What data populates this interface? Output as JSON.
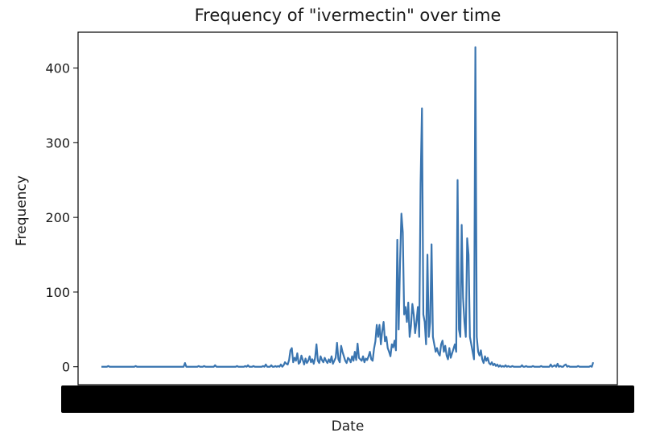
{
  "chart_data": {
    "type": "line",
    "title": "Frequency of \"ivermectin\" over time",
    "xlabel": "Date",
    "ylabel": "Frequency",
    "ylim": [
      -24,
      448
    ],
    "yticks": [
      0,
      100,
      200,
      300,
      400
    ],
    "grid": false,
    "legend": "none",
    "line_color": "#3a75b0",
    "x_tick_labels_note": "overlapping date tick labels rendered as an illegible black band",
    "series": [
      {
        "values": [
          0,
          0,
          0,
          0,
          0,
          1,
          0,
          0,
          0,
          0,
          0,
          0,
          0,
          0,
          0,
          0,
          0,
          0,
          0,
          0,
          0,
          0,
          0,
          0,
          0,
          1,
          0,
          0,
          0,
          0,
          0,
          0,
          0,
          0,
          0,
          0,
          0,
          0,
          0,
          0,
          0,
          0,
          0,
          0,
          0,
          0,
          0,
          0,
          0,
          0,
          0,
          0,
          0,
          0,
          0,
          0,
          0,
          0,
          0,
          0,
          0,
          5,
          0,
          0,
          0,
          0,
          0,
          0,
          0,
          0,
          0,
          1,
          0,
          0,
          0,
          1,
          0,
          0,
          0,
          0,
          0,
          0,
          0,
          2,
          0,
          0,
          0,
          0,
          0,
          0,
          0,
          0,
          0,
          0,
          0,
          0,
          0,
          0,
          0,
          1,
          0,
          0,
          0,
          0,
          0,
          1,
          0,
          2,
          0,
          0,
          0,
          1,
          0,
          0,
          0,
          0,
          0,
          0,
          1,
          0,
          3,
          0,
          0,
          0,
          2,
          0,
          0,
          1,
          0,
          1,
          0,
          3,
          0,
          2,
          6,
          4,
          3,
          9,
          22,
          25,
          6,
          12,
          8,
          18,
          4,
          6,
          15,
          9,
          3,
          11,
          5,
          8,
          14,
          6,
          10,
          4,
          12,
          30,
          8,
          5,
          14,
          9,
          6,
          12,
          8,
          5,
          10,
          6,
          14,
          4,
          8,
          12,
          32,
          10,
          6,
          28,
          20,
          14,
          8,
          5,
          12,
          10,
          6,
          14,
          8,
          20,
          9,
          31,
          12,
          10,
          8,
          14,
          6,
          11,
          9,
          14,
          20,
          10,
          8,
          24,
          34,
          56,
          40,
          56,
          30,
          48,
          60,
          34,
          40,
          25,
          20,
          14,
          30,
          26,
          35,
          22,
          170,
          50,
          140,
          205,
          180,
          70,
          80,
          60,
          86,
          40,
          55,
          84,
          70,
          45,
          60,
          80,
          40,
          246,
          346,
          70,
          60,
          30,
          150,
          40,
          60,
          164,
          40,
          30,
          20,
          25,
          18,
          15,
          30,
          35,
          20,
          28,
          15,
          10,
          25,
          12,
          18,
          24,
          30,
          20,
          250,
          50,
          40,
          190,
          92,
          60,
          40,
          172,
          150,
          40,
          30,
          20,
          10,
          428,
          40,
          20,
          15,
          22,
          10,
          5,
          14,
          8,
          12,
          5,
          3,
          6,
          2,
          4,
          1,
          3,
          0,
          2,
          0,
          1,
          0,
          2,
          0,
          1,
          0,
          0,
          1,
          0,
          0,
          0,
          0,
          0,
          0,
          2,
          0,
          0,
          1,
          0,
          0,
          0,
          0,
          1,
          0,
          0,
          0,
          0,
          0,
          1,
          0,
          0,
          0,
          0,
          0,
          0,
          3,
          0,
          1,
          2,
          0,
          4,
          0,
          1,
          0,
          0,
          2,
          3,
          0,
          1,
          0,
          0,
          0,
          0,
          0,
          0,
          1,
          0,
          0,
          0,
          0,
          0,
          0,
          0,
          0,
          1,
          0,
          6
        ]
      }
    ]
  }
}
